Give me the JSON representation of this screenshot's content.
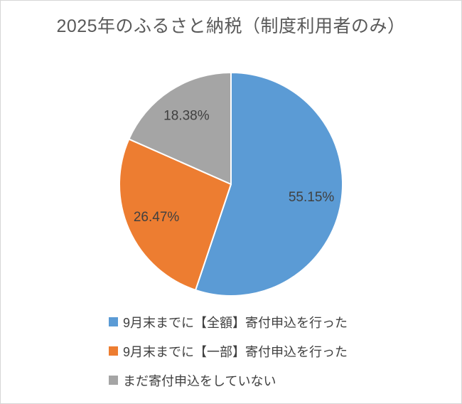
{
  "page": {
    "background_color": "#ffffff",
    "border_color": "#d6d6d6"
  },
  "chart_data": {
    "type": "pie",
    "title": "2025年のふるさと納税（制度利用者のみ）",
    "categories": [
      "9月末までに【全額】寄付申込を行った",
      "9月末までに【一部】寄付申込を行った",
      "まだ寄付申込をしていない"
    ],
    "values": [
      55.15,
      26.47,
      18.38
    ],
    "labels": [
      "55.15%",
      "26.47%",
      "18.38%"
    ],
    "colors": [
      "#5b9bd5",
      "#ed7d31",
      "#a5a5a5"
    ],
    "start_angle_deg": 0,
    "direction": "clockwise",
    "slice_border_color": "#ffffff",
    "label_color": "#404040",
    "title_color": "#595959",
    "legend_position": "bottom-left",
    "legend": [
      {
        "label": "9月末までに【全額】寄付申込を行った",
        "color": "#5b9bd5"
      },
      {
        "label": "9月末までに【一部】寄付申込を行った",
        "color": "#ed7d31"
      },
      {
        "label": "まだ寄付申込をしていない",
        "color": "#a5a5a5"
      }
    ]
  }
}
